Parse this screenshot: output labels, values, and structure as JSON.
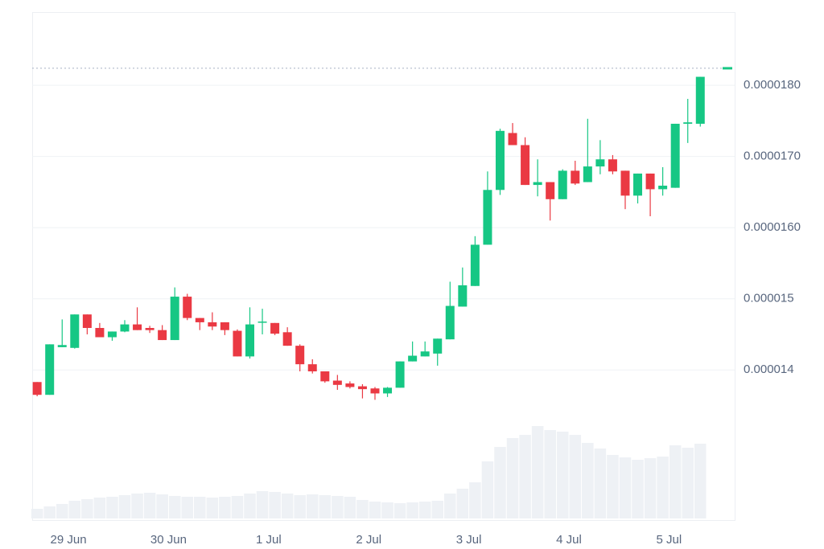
{
  "chart_data": {
    "type": "candlestick",
    "x": [
      -0.3125,
      -0.1875,
      -0.0625,
      0.0625,
      0.1875,
      0.3125,
      0.4375,
      0.5625,
      0.6875,
      0.8125,
      0.9375,
      1.0625,
      1.1875,
      1.3125,
      1.4375,
      1.5625,
      1.6875,
      1.8125,
      1.9375,
      2.0625,
      2.1875,
      2.3125,
      2.4375,
      2.5625,
      2.6875,
      2.8125,
      2.9375,
      3.0625,
      3.1875,
      3.3125,
      3.4375,
      3.5625,
      3.6875,
      3.8125,
      3.9375,
      4.0625,
      4.1875,
      4.3125,
      4.4375,
      4.5625,
      4.6875,
      4.8125,
      4.9375,
      5.0625,
      5.1875,
      5.3125,
      5.4375,
      5.5625,
      5.6875,
      5.8125,
      5.9375,
      6.0625,
      6.1875,
      6.3125
    ],
    "open": [
      1.383e-05,
      1.365e-05,
      1.432e-05,
      1.431e-05,
      1.478e-05,
      1.459e-05,
      1.446e-05,
      1.454e-05,
      1.464e-05,
      1.459e-05,
      1.456e-05,
      1.442e-05,
      1.503e-05,
      1.473e-05,
      1.467e-05,
      1.467e-05,
      1.455e-05,
      1.419e-05,
      1.467e-05,
      1.466e-05,
      1.453e-05,
      1.434e-05,
      1.408e-05,
      1.398e-05,
      1.385e-05,
      1.381e-05,
      1.377e-05,
      1.374e-05,
      1.367e-05,
      1.375e-05,
      1.412e-05,
      1.419e-05,
      1.423e-05,
      1.443e-05,
      1.489e-05,
      1.518e-05,
      1.576e-05,
      1.653e-05,
      1.733e-05,
      1.716e-05,
      1.66e-05,
      1.664e-05,
      1.64e-05,
      1.68e-05,
      1.664e-05,
      1.686e-05,
      1.696e-05,
      1.68e-05,
      1.645e-05,
      1.676e-05,
      1.654e-05,
      1.656e-05,
      1.746e-05,
      1.746e-05
    ],
    "high": [
      1.383e-05,
      1.436e-05,
      1.471e-05,
      1.478e-05,
      1.478e-05,
      1.466e-05,
      1.454e-05,
      1.47e-05,
      1.488e-05,
      1.462e-05,
      1.463e-05,
      1.516e-05,
      1.507e-05,
      1.473e-05,
      1.481e-05,
      1.467e-05,
      1.457e-05,
      1.488e-05,
      1.486e-05,
      1.466e-05,
      1.46e-05,
      1.436e-05,
      1.415e-05,
      1.398e-05,
      1.393e-05,
      1.384e-05,
      1.38e-05,
      1.376e-05,
      1.376e-05,
      1.412e-05,
      1.44e-05,
      1.44e-05,
      1.444e-05,
      1.524e-05,
      1.544e-05,
      1.588e-05,
      1.679e-05,
      1.739e-05,
      1.747e-05,
      1.727e-05,
      1.696e-05,
      1.664e-05,
      1.682e-05,
      1.694e-05,
      1.753e-05,
      1.723e-05,
      1.702e-05,
      1.68e-05,
      1.676e-05,
      1.676e-05,
      1.685e-05,
      1.746e-05,
      1.781e-05,
      1.812e-05
    ],
    "low": [
      1.363e-05,
      1.365e-05,
      1.432e-05,
      1.43e-05,
      1.45e-05,
      1.446e-05,
      1.441e-05,
      1.453e-05,
      1.456e-05,
      1.452e-05,
      1.442e-05,
      1.442e-05,
      1.47e-05,
      1.456e-05,
      1.456e-05,
      1.449e-05,
      1.419e-05,
      1.416e-05,
      1.45e-05,
      1.449e-05,
      1.434e-05,
      1.398e-05,
      1.395e-05,
      1.382e-05,
      1.372e-05,
      1.374e-05,
      1.36e-05,
      1.358e-05,
      1.362e-05,
      1.375e-05,
      1.412e-05,
      1.419e-05,
      1.406e-05,
      1.443e-05,
      1.489e-05,
      1.518e-05,
      1.576e-05,
      1.646e-05,
      1.716e-05,
      1.66e-05,
      1.644e-05,
      1.61e-05,
      1.64e-05,
      1.66e-05,
      1.664e-05,
      1.675e-05,
      1.675e-05,
      1.626e-05,
      1.634e-05,
      1.616e-05,
      1.645e-05,
      1.656e-05,
      1.719e-05,
      1.742e-05
    ],
    "close": [
      1.365e-05,
      1.436e-05,
      1.435e-05,
      1.478e-05,
      1.459e-05,
      1.446e-05,
      1.454e-05,
      1.464e-05,
      1.456e-05,
      1.456e-05,
      1.442e-05,
      1.503e-05,
      1.473e-05,
      1.467e-05,
      1.461e-05,
      1.456e-05,
      1.419e-05,
      1.464e-05,
      1.468e-05,
      1.451e-05,
      1.434e-05,
      1.408e-05,
      1.398e-05,
      1.384e-05,
      1.379e-05,
      1.376e-05,
      1.373e-05,
      1.367e-05,
      1.375e-05,
      1.412e-05,
      1.42e-05,
      1.426e-05,
      1.444e-05,
      1.49e-05,
      1.519e-05,
      1.576e-05,
      1.653e-05,
      1.736e-05,
      1.716e-05,
      1.66e-05,
      1.664e-05,
      1.64e-05,
      1.68e-05,
      1.662e-05,
      1.686e-05,
      1.696e-05,
      1.679e-05,
      1.645e-05,
      1.676e-05,
      1.654e-05,
      1.659e-05,
      1.746e-05,
      1.748e-05,
      1.812e-05
    ],
    "volume": [
      12,
      15,
      18,
      22,
      24,
      26,
      27,
      29,
      31,
      32,
      30,
      28,
      27,
      27,
      26,
      27,
      28,
      31,
      34,
      33,
      31,
      29,
      30,
      29,
      28,
      27,
      23,
      21,
      20,
      19,
      20,
      21,
      22,
      31,
      37,
      45,
      71,
      89,
      100,
      104,
      115,
      110,
      108,
      104,
      94,
      87,
      79,
      76,
      73,
      75,
      77,
      91,
      88,
      93
    ],
    "vlim": [
      0,
      632
    ],
    "last_price": 1.824e-05,
    "up_color": "#16c784",
    "down_color": "#ea3943",
    "volume_color": "#eef1f5",
    "ylim": [
      1.189e-05,
      1.903e-05
    ],
    "yticks": [
      1.4e-05,
      1.5e-05,
      {
        "value": 1.6e-05,
        "label": "0.0000160"
      },
      {
        "value": 1.7e-05,
        "label": "0.0000170"
      },
      {
        "value": 1.8e-05,
        "label": "0.0000180"
      }
    ],
    "xlim": [
      -0.362,
      6.656
    ],
    "xticks": [
      {
        "value": 0,
        "label": "29 Jun"
      },
      {
        "value": 1,
        "label": "30 Jun"
      },
      {
        "value": 2,
        "label": "1 Jul"
      },
      {
        "value": 3,
        "label": "2 Jul"
      },
      {
        "value": 4,
        "label": "3 Jul"
      },
      {
        "value": 5,
        "label": "4 Jul"
      },
      {
        "value": 6,
        "label": "5 Jul"
      }
    ],
    "grid": true
  }
}
